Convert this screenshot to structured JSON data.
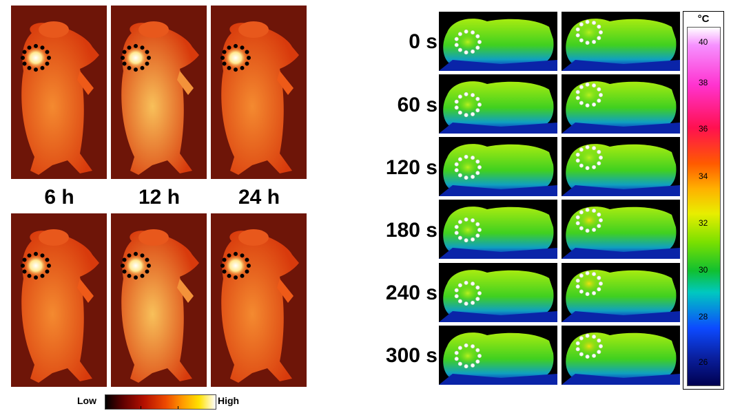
{
  "fluorescence": {
    "time_labels": [
      "6 h",
      "12 h",
      "24 h"
    ],
    "legend": {
      "low_label": "Low",
      "high_label": "High"
    }
  },
  "thermal": {
    "time_labels": [
      "0 s",
      "60 s",
      "120 s",
      "180 s",
      "240 s",
      "300 s"
    ],
    "colorbar": {
      "unit": "°C",
      "ticks": [
        "40",
        "38",
        "36",
        "34",
        "32",
        "30",
        "28",
        "26"
      ]
    }
  },
  "colors": {
    "fluorescence_background": "#6e1508",
    "fluorescence_body": "#f05a14",
    "thermal_background": "#000000",
    "thermal_body": "#7ee018"
  }
}
